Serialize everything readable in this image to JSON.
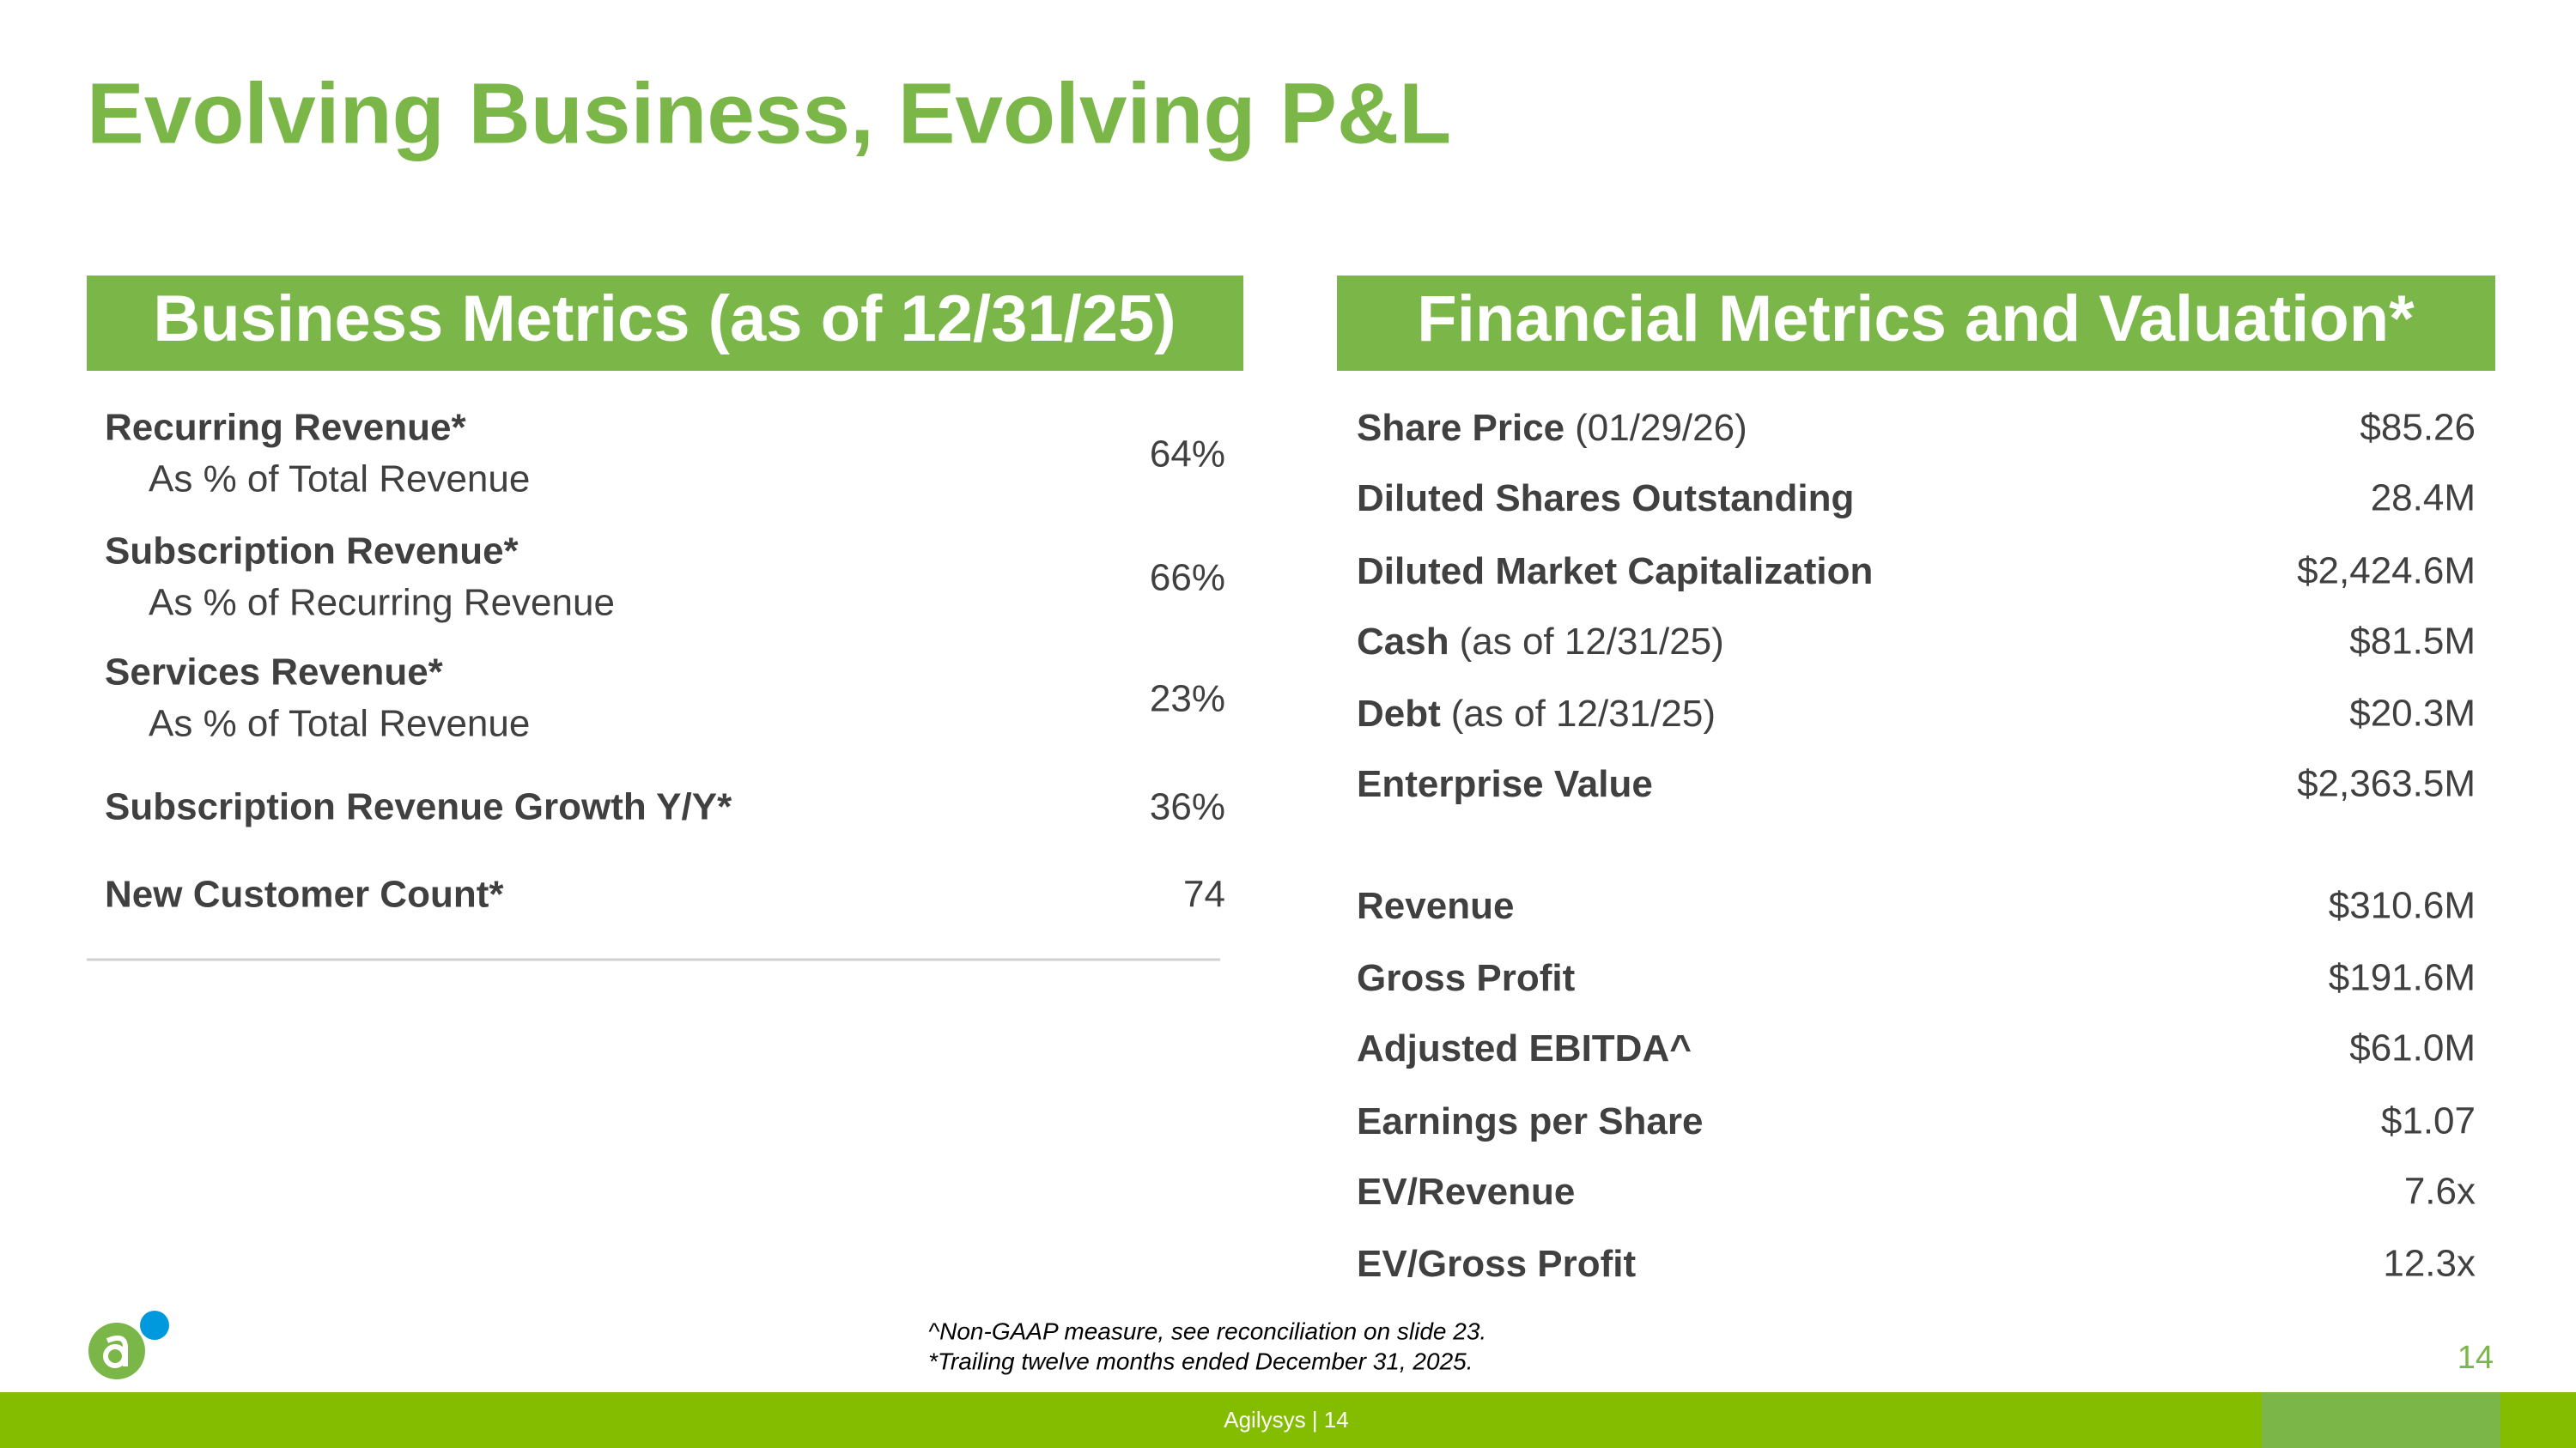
{
  "title": "Evolving Business, Evolving P&L",
  "business_metrics": {
    "header": "Business Metrics (as of 12/31/25)",
    "rows": [
      {
        "label": "Recurring Revenue*",
        "sublabel": "As % of Total Revenue",
        "value": "64%"
      },
      {
        "label": "Subscription Revenue*",
        "sublabel": "As % of Recurring Revenue",
        "value": "66%"
      },
      {
        "label": "Services Revenue*",
        "sublabel": "As % of Total Revenue",
        "value": "23%"
      },
      {
        "label": "Subscription Revenue Growth Y/Y*",
        "value": "36%"
      },
      {
        "label": "New Customer Count*",
        "value": "74"
      }
    ]
  },
  "financial_metrics": {
    "header": "Financial Metrics and Valuation*",
    "rows": [
      {
        "label": "Share Price",
        "note": "(01/29/26)",
        "value": "$85.26"
      },
      {
        "label": "Diluted Shares Outstanding",
        "value": "28.4M"
      },
      {
        "label": "Diluted Market Capitalization",
        "value": "$2,424.6M"
      },
      {
        "label": "Cash",
        "note": "(as of 12/31/25)",
        "value": "$81.5M"
      },
      {
        "label": "Debt",
        "note": "(as of 12/31/25)",
        "value": "$20.3M"
      },
      {
        "label": "Enterprise Value",
        "value": "$2,363.5M"
      },
      {
        "label": "Revenue",
        "value": "$310.6M"
      },
      {
        "label": "Gross Profit",
        "value": "$191.6M"
      },
      {
        "label": "Adjusted EBITDA^",
        "value": "$61.0M"
      },
      {
        "label": "Earnings per Share",
        "value": "$1.07"
      },
      {
        "label": "EV/Revenue",
        "value": "7.6x"
      },
      {
        "label": "EV/Gross Profit",
        "value": "12.3x"
      }
    ]
  },
  "footnotes": [
    "^Non-GAAP measure, see reconciliation on slide 23.",
    "*Trailing twelve months ended December 31, 2025."
  ],
  "page_number": "14",
  "footer": "Agilysys | 14"
}
